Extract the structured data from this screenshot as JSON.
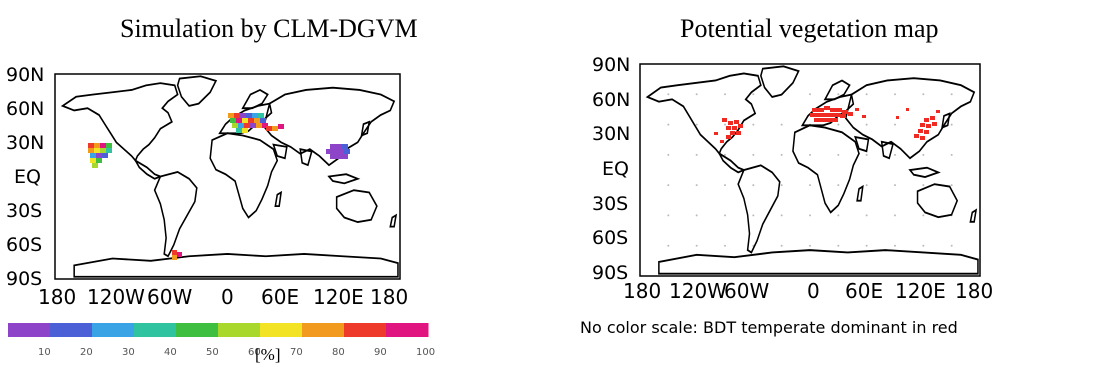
{
  "panels": [
    {
      "title": "Simulation by CLM-DGVM",
      "lat_labels": [
        "90N",
        "60N",
        "30N",
        "EQ",
        "30S",
        "60S",
        "90S"
      ],
      "lon_labels": [
        "180",
        "120W",
        "60W",
        "0",
        "60E",
        "120E",
        "180"
      ],
      "colorbar": {
        "ticks": [
          "10",
          "20",
          "30",
          "40",
          "50",
          "60",
          "70",
          "80",
          "90",
          "100"
        ],
        "colors": [
          "#8e44c9",
          "#4b5fd6",
          "#3aa3e6",
          "#2fc3a0",
          "#3fbf3f",
          "#a8d82c",
          "#f2e324",
          "#f29a1e",
          "#ee3a2a",
          "#e0157f"
        ],
        "unit": "[%]"
      }
    },
    {
      "title": "Potential vegetation map",
      "lat_labels": [
        "90N",
        "60N",
        "30N",
        "EQ",
        "30S",
        "60S",
        "90S"
      ],
      "lon_labels": [
        "180",
        "120W",
        "60W",
        "0",
        "60E",
        "120E",
        "180"
      ],
      "note": "No color scale: BDT temperate dominant in red",
      "highlight_color": "#ee2a22"
    }
  ],
  "colors": {
    "land_outline": "#000000",
    "frame": "#000000",
    "grid_dots": "#bbbbbb"
  }
}
